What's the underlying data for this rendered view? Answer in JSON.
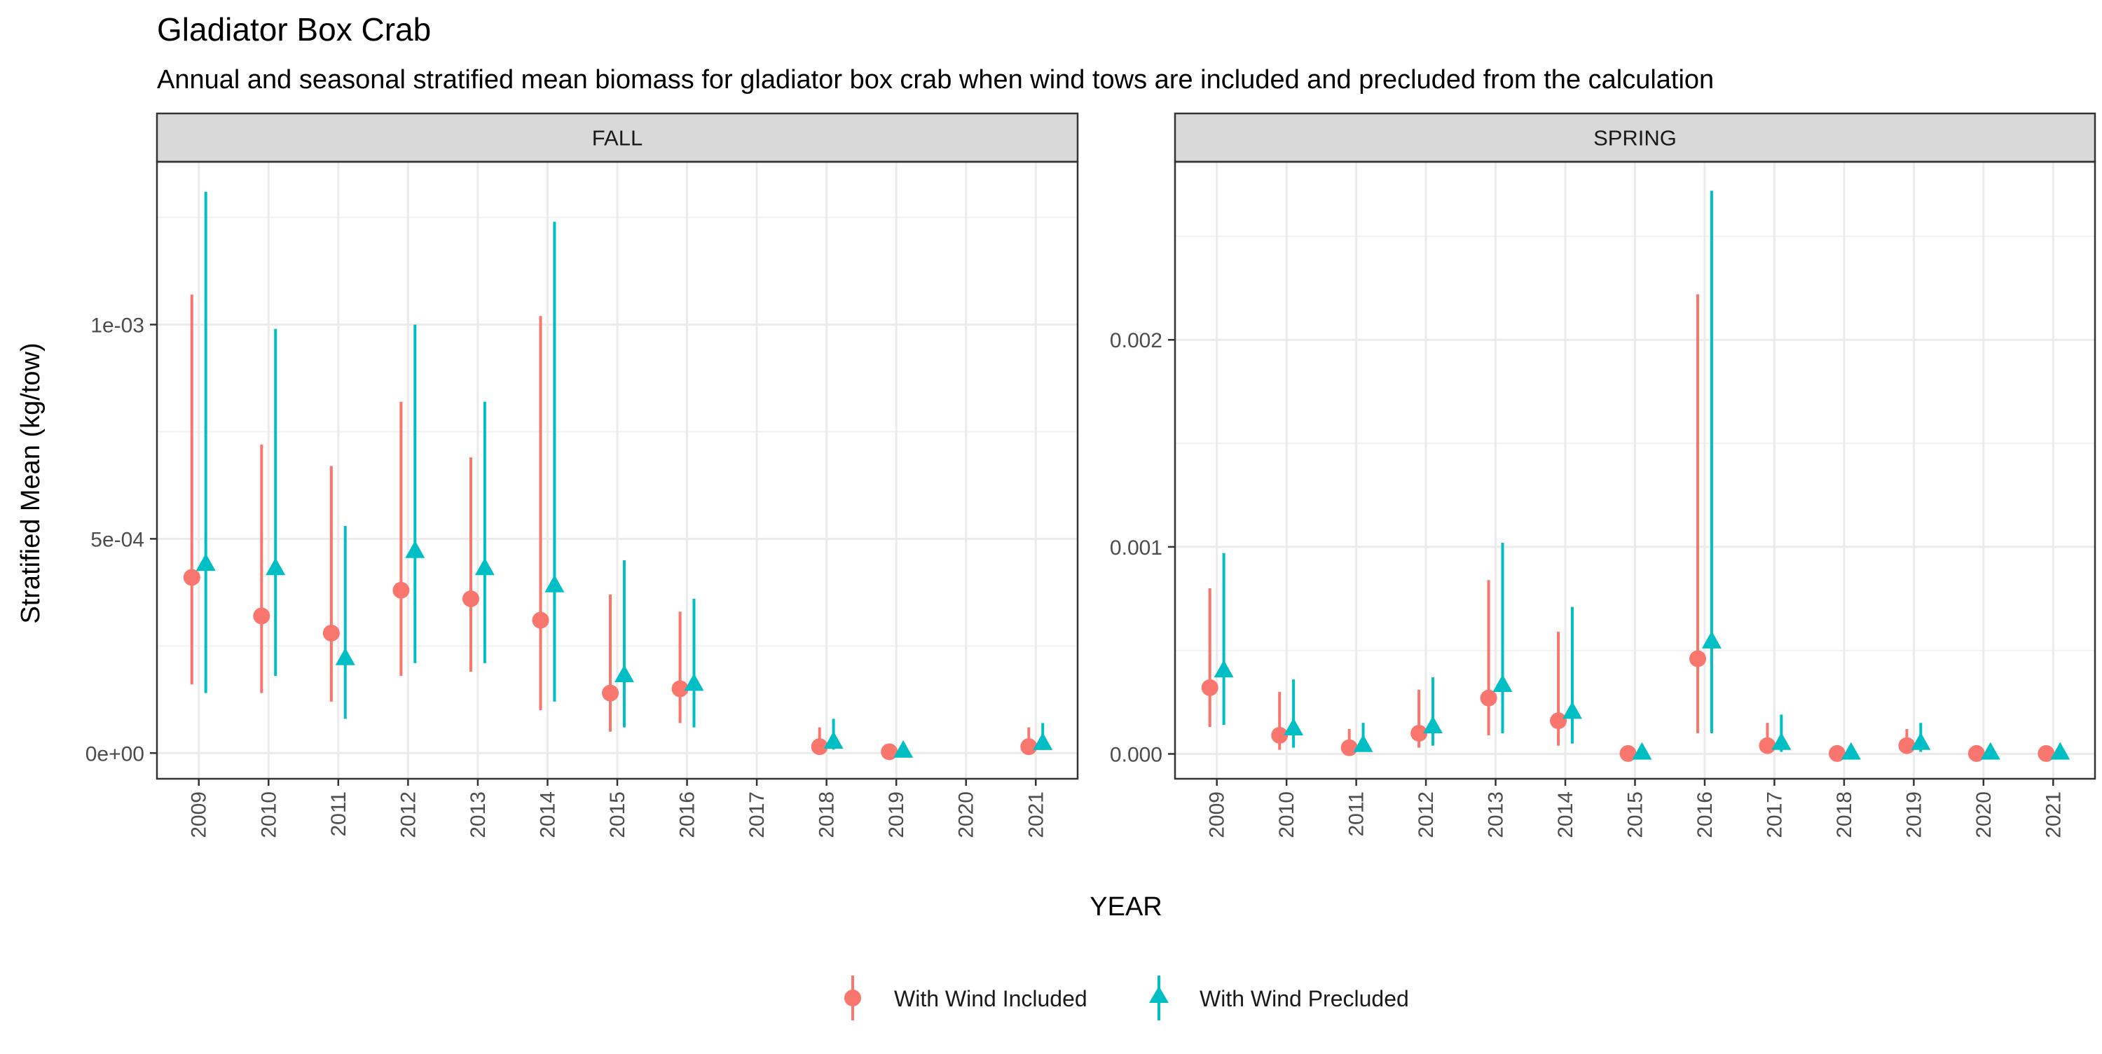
{
  "title": "Gladiator Box Crab",
  "subtitle": "Annual and seasonal stratified mean biomass for gladiator box crab when wind tows are included and precluded from the calculation",
  "ylabel": "Stratified Mean (kg/tow)",
  "xlabel": "YEAR",
  "colors": {
    "included": "#F8766D",
    "precluded": "#00BFC4"
  },
  "legend": {
    "position": "bottom",
    "items": [
      {
        "key": "included",
        "label": "With Wind Included",
        "shape": "circle"
      },
      {
        "key": "precluded",
        "label": "With Wind Precluded",
        "shape": "triangle"
      }
    ]
  },
  "chart_data": [
    {
      "type": "scatter",
      "panel": "FALL",
      "ylim": [
        -6e-05,
        0.00138
      ],
      "yticks": [
        {
          "value": 0,
          "label": "0e+00"
        },
        {
          "value": 0.0005,
          "label": "5e-04"
        },
        {
          "value": 0.001,
          "label": "1e-03"
        }
      ],
      "categories": [
        "2009",
        "2010",
        "2011",
        "2012",
        "2013",
        "2014",
        "2015",
        "2016",
        "2017",
        "2018",
        "2019",
        "2020",
        "2021"
      ],
      "series": [
        {
          "name": "With Wind Included",
          "points": [
            {
              "x": "2009",
              "y": 0.00041,
              "lo": 0.00016,
              "hi": 0.00107
            },
            {
              "x": "2010",
              "y": 0.00032,
              "lo": 0.00014,
              "hi": 0.00072
            },
            {
              "x": "2011",
              "y": 0.00028,
              "lo": 0.00012,
              "hi": 0.00067
            },
            {
              "x": "2012",
              "y": 0.00038,
              "lo": 0.00018,
              "hi": 0.00082
            },
            {
              "x": "2013",
              "y": 0.00036,
              "lo": 0.00019,
              "hi": 0.00069
            },
            {
              "x": "2014",
              "y": 0.00031,
              "lo": 0.0001,
              "hi": 0.00102
            },
            {
              "x": "2015",
              "y": 0.00014,
              "lo": 5e-05,
              "hi": 0.00037
            },
            {
              "x": "2016",
              "y": 0.00015,
              "lo": 7e-05,
              "hi": 0.00033
            },
            {
              "x": "2018",
              "y": 1.5e-05,
              "lo": 5e-06,
              "hi": 6e-05
            },
            {
              "x": "2019",
              "y": 3e-06,
              "lo": 5e-07,
              "hi": 8e-06
            },
            {
              "x": "2021",
              "y": 1.5e-05,
              "lo": 5e-06,
              "hi": 6e-05
            }
          ]
        },
        {
          "name": "With Wind Precluded",
          "points": [
            {
              "x": "2009",
              "y": 0.00044,
              "lo": 0.00014,
              "hi": 0.00131
            },
            {
              "x": "2010",
              "y": 0.00043,
              "lo": 0.00018,
              "hi": 0.00099
            },
            {
              "x": "2011",
              "y": 0.00022,
              "lo": 8e-05,
              "hi": 0.00053
            },
            {
              "x": "2012",
              "y": 0.00047,
              "lo": 0.00021,
              "hi": 0.001
            },
            {
              "x": "2013",
              "y": 0.00043,
              "lo": 0.00021,
              "hi": 0.00082
            },
            {
              "x": "2014",
              "y": 0.00039,
              "lo": 0.00012,
              "hi": 0.00124
            },
            {
              "x": "2015",
              "y": 0.00018,
              "lo": 6e-05,
              "hi": 0.00045
            },
            {
              "x": "2016",
              "y": 0.00016,
              "lo": 6e-05,
              "hi": 0.00036
            },
            {
              "x": "2018",
              "y": 2.5e-05,
              "lo": 8e-06,
              "hi": 8e-05
            },
            {
              "x": "2019",
              "y": 4e-06,
              "lo": 1e-06,
              "hi": 1e-05
            },
            {
              "x": "2021",
              "y": 2.2e-05,
              "lo": 7e-06,
              "hi": 7e-05
            }
          ]
        }
      ]
    },
    {
      "type": "scatter",
      "panel": "SPRING",
      "ylim": [
        -0.00012,
        0.00286
      ],
      "yticks": [
        {
          "value": 0,
          "label": "0.000"
        },
        {
          "value": 0.001,
          "label": "0.001"
        },
        {
          "value": 0.002,
          "label": "0.002"
        }
      ],
      "categories": [
        "2009",
        "2010",
        "2011",
        "2012",
        "2013",
        "2014",
        "2015",
        "2016",
        "2017",
        "2018",
        "2019",
        "2020",
        "2021"
      ],
      "series": [
        {
          "name": "With Wind Included",
          "points": [
            {
              "x": "2009",
              "y": 0.00032,
              "lo": 0.00013,
              "hi": 0.0008
            },
            {
              "x": "2010",
              "y": 9e-05,
              "lo": 2e-05,
              "hi": 0.0003
            },
            {
              "x": "2011",
              "y": 3e-05,
              "lo": 1e-05,
              "hi": 0.00012
            },
            {
              "x": "2012",
              "y": 0.0001,
              "lo": 3e-05,
              "hi": 0.00031
            },
            {
              "x": "2013",
              "y": 0.00027,
              "lo": 9e-05,
              "hi": 0.00084
            },
            {
              "x": "2014",
              "y": 0.00016,
              "lo": 4e-05,
              "hi": 0.00059
            },
            {
              "x": "2015",
              "y": 2e-06,
              "lo": 5e-07,
              "hi": 5e-06
            },
            {
              "x": "2016",
              "y": 0.00046,
              "lo": 0.0001,
              "hi": 0.00222
            },
            {
              "x": "2017",
              "y": 4e-05,
              "lo": 1e-05,
              "hi": 0.00015
            },
            {
              "x": "2018",
              "y": 2e-06,
              "lo": 5e-07,
              "hi": 5e-06
            },
            {
              "x": "2019",
              "y": 4e-05,
              "lo": 1e-05,
              "hi": 0.00012
            },
            {
              "x": "2020",
              "y": 2e-06,
              "lo": 5e-07,
              "hi": 5e-06
            },
            {
              "x": "2021",
              "y": 2e-06,
              "lo": 5e-07,
              "hi": 5e-06
            }
          ]
        },
        {
          "name": "With Wind Precluded",
          "points": [
            {
              "x": "2009",
              "y": 0.0004,
              "lo": 0.00014,
              "hi": 0.00097
            },
            {
              "x": "2010",
              "y": 0.00012,
              "lo": 3e-05,
              "hi": 0.00036
            },
            {
              "x": "2011",
              "y": 4e-05,
              "lo": 1e-05,
              "hi": 0.00015
            },
            {
              "x": "2012",
              "y": 0.00013,
              "lo": 4e-05,
              "hi": 0.00037
            },
            {
              "x": "2013",
              "y": 0.00033,
              "lo": 0.0001,
              "hi": 0.00102
            },
            {
              "x": "2014",
              "y": 0.0002,
              "lo": 5e-05,
              "hi": 0.00071
            },
            {
              "x": "2015",
              "y": 3e-06,
              "lo": 1e-06,
              "hi": 8e-06
            },
            {
              "x": "2016",
              "y": 0.00054,
              "lo": 0.0001,
              "hi": 0.00272
            },
            {
              "x": "2017",
              "y": 5e-05,
              "lo": 1e-05,
              "hi": 0.00019
            },
            {
              "x": "2018",
              "y": 3e-06,
              "lo": 1e-06,
              "hi": 8e-06
            },
            {
              "x": "2019",
              "y": 5e-05,
              "lo": 1e-05,
              "hi": 0.00015
            },
            {
              "x": "2020",
              "y": 3e-06,
              "lo": 1e-06,
              "hi": 8e-06
            },
            {
              "x": "2021",
              "y": 3e-06,
              "lo": 1e-06,
              "hi": 8e-06
            }
          ]
        }
      ]
    }
  ]
}
